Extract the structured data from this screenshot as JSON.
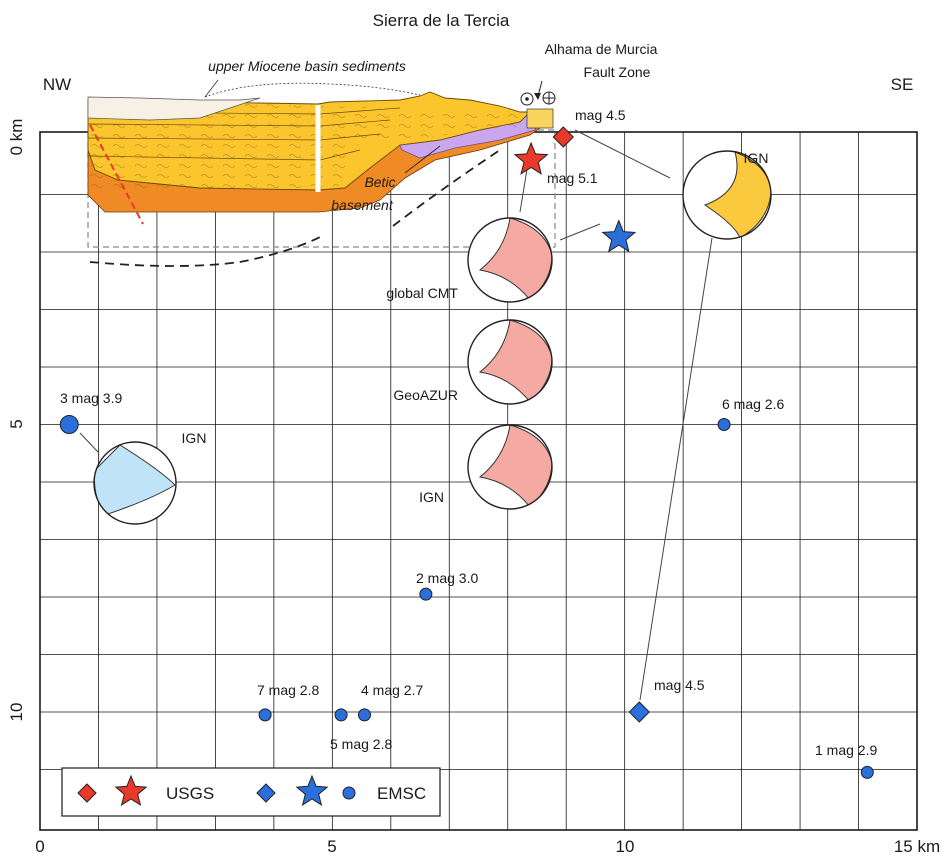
{
  "title": "Sierra de la Tercia",
  "direction_left": "NW",
  "direction_right": "SE",
  "fault_zone_line1": "Alhama de Murcia",
  "fault_zone_line2": "Fault Zone",
  "sediments_label": "upper Miocene basin sediments",
  "basement_line1": "Betic",
  "basement_line2": "basement",
  "axes": {
    "x_ticks": [
      "0",
      "5",
      "10",
      "15 km"
    ],
    "y_ticks": [
      "0 km",
      "5",
      "10"
    ],
    "x_range_km": [
      0,
      15
    ],
    "y_range_km": [
      0,
      11.5
    ]
  },
  "events": [
    {
      "id": "usgs-diamond",
      "x_km": 8.95,
      "depth_km": 0.0,
      "symbol": "diamond",
      "agency": "USGS",
      "label": "mag 4.5",
      "color": "#e8392b"
    },
    {
      "id": "usgs-star",
      "x_km": 8.4,
      "depth_km": 0.4,
      "symbol": "star",
      "agency": "USGS",
      "label": "mag 5.1",
      "color": "#e8392b"
    },
    {
      "id": "emsc-star",
      "x_km": 9.9,
      "depth_km": 1.75,
      "symbol": "star",
      "agency": "EMSC",
      "label": "",
      "color": "#2a6fdb"
    },
    {
      "id": "emsc-diamond",
      "x_km": 10.25,
      "depth_km": 10.0,
      "symbol": "diamond",
      "agency": "EMSC",
      "label": "mag 4.5",
      "color": "#2a6fdb"
    },
    {
      "id": "emsc-3",
      "x_km": 0.5,
      "depth_km": 5.0,
      "symbol": "circle",
      "agency": "EMSC",
      "label": "3  mag 3.9",
      "color": "#2a6fdb"
    },
    {
      "id": "emsc-6",
      "x_km": 11.7,
      "depth_km": 5.0,
      "symbol": "circle",
      "agency": "EMSC",
      "label": "6 mag 2.6",
      "color": "#2a6fdb"
    },
    {
      "id": "emsc-2",
      "x_km": 6.6,
      "depth_km": 7.95,
      "symbol": "circle",
      "agency": "EMSC",
      "label": "2 mag 3.0",
      "color": "#2a6fdb"
    },
    {
      "id": "emsc-7",
      "x_km": 3.85,
      "depth_km": 10.05,
      "symbol": "circle",
      "agency": "EMSC",
      "label": "7 mag 2.8",
      "color": "#2a6fdb"
    },
    {
      "id": "emsc-5",
      "x_km": 5.15,
      "depth_km": 10.05,
      "symbol": "circle",
      "agency": "EMSC",
      "label": "5 mag 2.8",
      "color": "#2a6fdb"
    },
    {
      "id": "emsc-4",
      "x_km": 5.55,
      "depth_km": 10.05,
      "symbol": "circle",
      "agency": "EMSC",
      "label": "4 mag 2.7",
      "color": "#2a6fdb"
    },
    {
      "id": "emsc-1",
      "x_km": 14.15,
      "depth_km": 11.05,
      "symbol": "circle",
      "agency": "EMSC",
      "label": "1 mag 2.9",
      "color": "#2a6fdb"
    }
  ],
  "mechanisms": [
    {
      "id": "ign-3",
      "label": "IGN",
      "fill": "#bfe3f7"
    },
    {
      "id": "ign-main",
      "label": "IGN",
      "fill": "#fbc93d"
    },
    {
      "id": "global-cmt",
      "label": "global CMT",
      "fill": "#f4aaa2"
    },
    {
      "id": "geoazur",
      "label": "GeoAZUR",
      "fill": "#f4aaa2"
    },
    {
      "id": "ign-51",
      "label": "IGN",
      "fill": "#f4aaa2"
    }
  ],
  "legend": {
    "usgs_label": "USGS",
    "emsc_label": "EMSC"
  },
  "colors": {
    "sediment_yellow": "#fbc52e",
    "sediment_orange": "#f08a24",
    "basement_purple": "#c9a6ee",
    "fault_red": "#e8392b",
    "grid": "#1a1a1a"
  }
}
